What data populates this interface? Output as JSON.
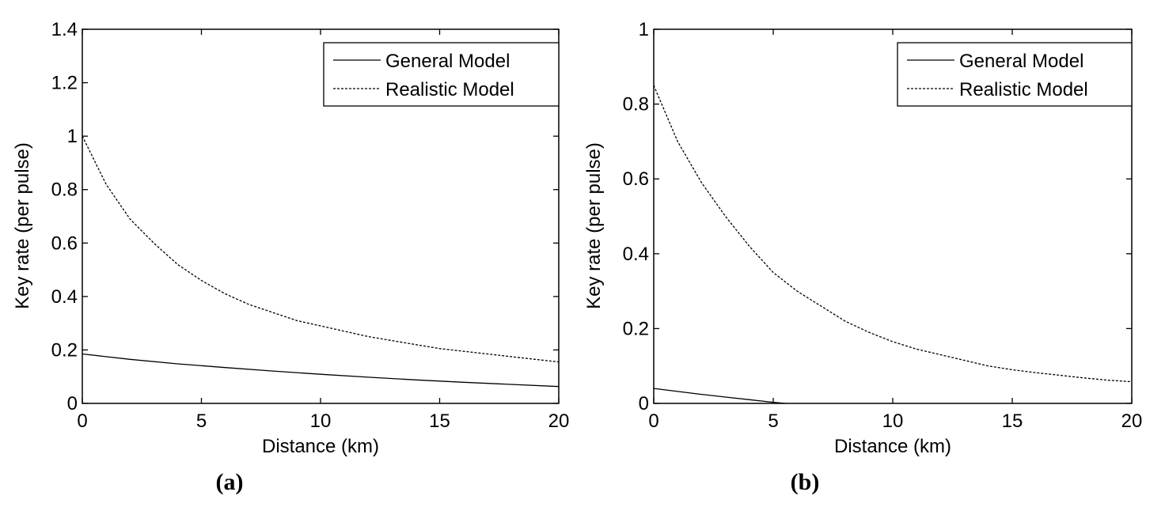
{
  "chart_data": [
    {
      "type": "line",
      "panel": "a",
      "caption": "(a)",
      "xlabel": "Distance (km)",
      "ylabel": "Key rate (per pulse)",
      "xlim": [
        0,
        20
      ],
      "ylim": [
        0,
        1.4
      ],
      "xticks": [
        "0",
        "5",
        "10",
        "15",
        "20"
      ],
      "yticks": [
        "0",
        "0.2",
        "0.4",
        "0.6",
        "0.8",
        "1",
        "1.2",
        "1.4"
      ],
      "legend_position": "top-right",
      "series": [
        {
          "name": "General Model",
          "style": "solid",
          "x": [
            0,
            2,
            4,
            6,
            8,
            10,
            12,
            14,
            16,
            18,
            20
          ],
          "y": [
            0.185,
            0.165,
            0.148,
            0.134,
            0.121,
            0.109,
            0.098,
            0.088,
            0.079,
            0.071,
            0.063
          ]
        },
        {
          "name": "Realistic Model",
          "style": "dashed",
          "x": [
            0,
            1,
            2,
            3,
            4,
            5,
            6,
            7,
            8,
            9,
            10,
            11,
            12,
            13,
            14,
            15,
            16,
            17,
            18,
            19,
            20
          ],
          "y": [
            1.0,
            0.82,
            0.69,
            0.6,
            0.52,
            0.46,
            0.41,
            0.37,
            0.34,
            0.31,
            0.29,
            0.27,
            0.25,
            0.235,
            0.22,
            0.205,
            0.195,
            0.185,
            0.175,
            0.165,
            0.155
          ]
        }
      ]
    },
    {
      "type": "line",
      "panel": "b",
      "caption": "(b)",
      "xlabel": "Distance (km)",
      "ylabel": "Key rate (per pulse)",
      "xlim": [
        0,
        20
      ],
      "ylim": [
        0,
        1
      ],
      "xticks": [
        "0",
        "5",
        "10",
        "15",
        "20"
      ],
      "yticks": [
        "0",
        "0.2",
        "0.4",
        "0.6",
        "0.8",
        "1"
      ],
      "legend_position": "top-right",
      "series": [
        {
          "name": "General Model",
          "style": "solid",
          "x": [
            0,
            1,
            2,
            3,
            4,
            5,
            5.5
          ],
          "y": [
            0.04,
            0.032,
            0.024,
            0.017,
            0.01,
            0.003,
            0.0
          ]
        },
        {
          "name": "Realistic Model",
          "style": "dashed",
          "x": [
            0,
            1,
            2,
            3,
            4,
            5,
            6,
            7,
            8,
            9,
            10,
            11,
            12,
            13,
            14,
            15,
            16,
            17,
            18,
            19,
            20
          ],
          "y": [
            0.85,
            0.7,
            0.59,
            0.5,
            0.42,
            0.35,
            0.3,
            0.26,
            0.22,
            0.19,
            0.165,
            0.145,
            0.13,
            0.115,
            0.1,
            0.09,
            0.082,
            0.075,
            0.068,
            0.062,
            0.058
          ]
        }
      ]
    }
  ]
}
